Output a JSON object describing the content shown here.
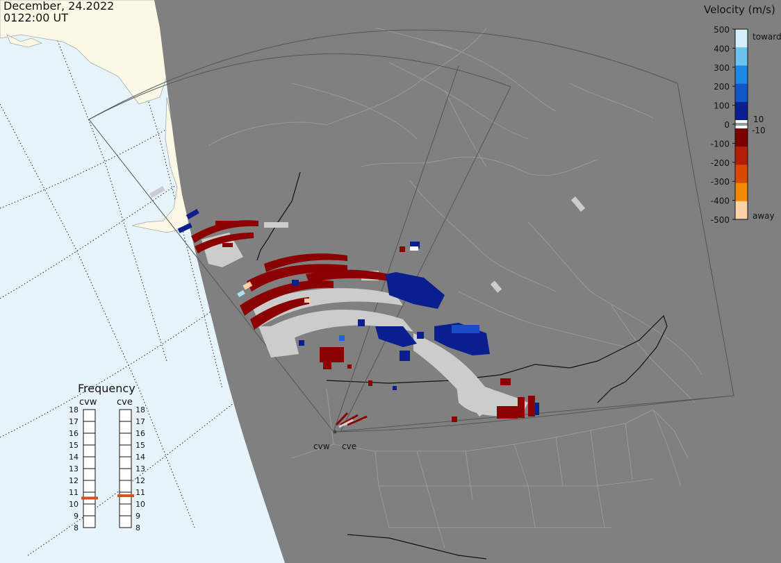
{
  "header": {
    "date": "December, 24.2022",
    "time": "0122:00 UT"
  },
  "legend": {
    "title": "Velocity (m/s)",
    "ticks": [
      "500",
      "400",
      "300",
      "200",
      "100",
      "0",
      "-100",
      "-200",
      "-300",
      "-400",
      "-500"
    ],
    "toward_label": "toward",
    "away_label": "away",
    "pos_threshold": "10",
    "neg_threshold": "-10",
    "colors": [
      "#d6eefb",
      "#6cc3ee",
      "#1e88e5",
      "#1257c9",
      "#0a1f8f",
      "#7a0000",
      "#b31e06",
      "#d94a00",
      "#f28a00",
      "#ffd1a6"
    ]
  },
  "frequency_panel": {
    "title": "Frequency",
    "radars": [
      {
        "name": "cvw",
        "frequency_mhz": 10.5
      },
      {
        "name": "cve",
        "frequency_mhz": 10.7
      }
    ],
    "scale": [
      "18",
      "17",
      "16",
      "15",
      "14",
      "13",
      "12",
      "11",
      "10",
      "9",
      "8"
    ],
    "marker_color": "#d9501e"
  },
  "radar_sites": [
    {
      "name": "cvw"
    },
    {
      "name": "cve"
    }
  ],
  "map_colors": {
    "ocean": "#e8f4fb",
    "land_day": "#fbf8e6",
    "night": "#808080",
    "coastline": "#9a9a9a",
    "border": "#111111",
    "ground_scatter": "#cccccc"
  }
}
